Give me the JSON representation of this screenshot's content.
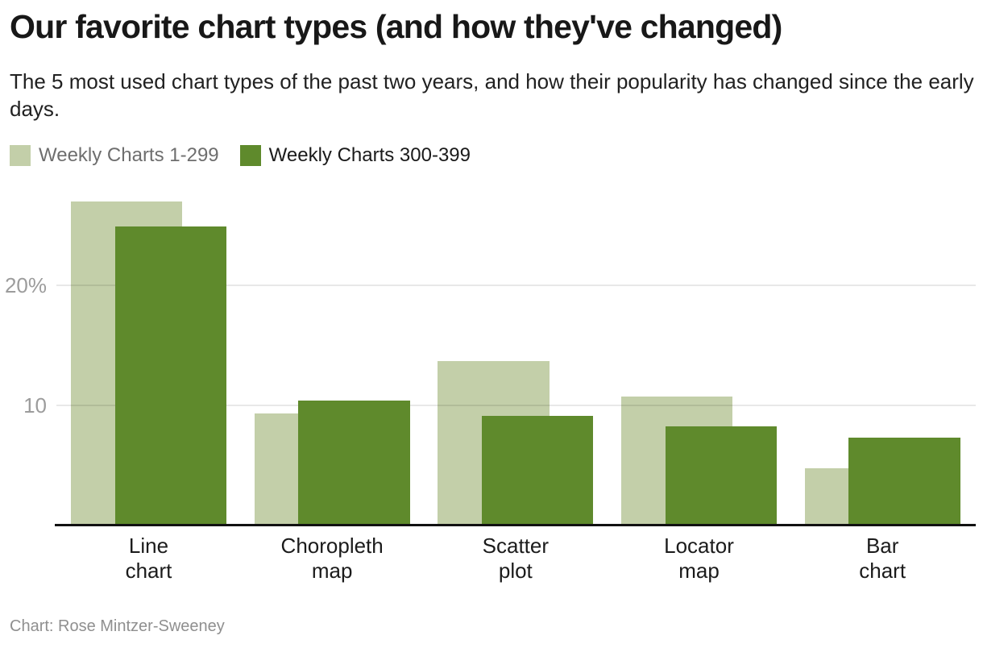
{
  "header": {
    "title": "Our favorite chart types (and how they've changed)",
    "subtitle": "The 5 most used chart types of the past two years, and how their popularity has changed since the early days."
  },
  "legend": {
    "items": [
      {
        "label": "Weekly Charts 1-299",
        "color": "#c3cfa9",
        "label_color": "#6e6e6e"
      },
      {
        "label": "Weekly Charts 300-399",
        "color": "#5f8a2c",
        "label_color": "#1a1a1a"
      }
    ]
  },
  "chart_data": {
    "type": "bar",
    "title": "Our favorite chart types (and how they've changed)",
    "subtitle": "The 5 most used chart types of the past two years, and how their popularity has changed since the early days.",
    "categories": [
      "Line chart",
      "Choropleth map",
      "Scatter plot",
      "Locator map",
      "Bar chart"
    ],
    "category_lines": [
      [
        "Line",
        "chart"
      ],
      [
        "Choropleth",
        "map"
      ],
      [
        "Scatter",
        "plot"
      ],
      [
        "Locator",
        "map"
      ],
      [
        "Bar",
        "chart"
      ]
    ],
    "series": [
      {
        "name": "Weekly Charts 1-299",
        "color": "#c3cfa9",
        "values": [
          27.0,
          9.3,
          13.7,
          10.7,
          4.7
        ]
      },
      {
        "name": "Weekly Charts 300-399",
        "color": "#5f8a2c",
        "values": [
          24.9,
          10.4,
          9.1,
          8.2,
          7.3
        ]
      }
    ],
    "unit": "%",
    "y_ticks": [
      {
        "value": 20,
        "label": "20%"
      },
      {
        "value": 10,
        "label": "10"
      }
    ],
    "ylim": [
      0,
      27.5
    ],
    "xlabel": "",
    "ylabel": "",
    "grid": "horizontal",
    "legend_position": "top-left",
    "bar_style": "overlapping-grouped"
  },
  "footer": {
    "credit": "Chart: Rose Mintzer-Sweeney"
  }
}
